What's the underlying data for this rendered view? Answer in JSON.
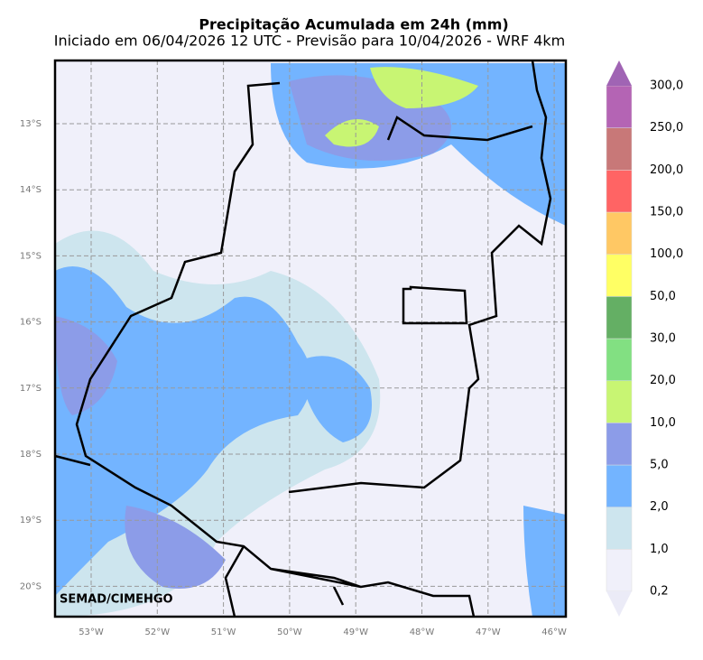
{
  "header": {
    "title": "Precipitação Acumulada em 24h (mm)",
    "subtitle": "Iniciado em 06/04/2026 12 UTC - Previsão para 10/04/2026 - WRF 4km"
  },
  "map": {
    "lat_labels": [
      "13°S",
      "14°S",
      "15°S",
      "16°S",
      "17°S",
      "18°S",
      "19°S",
      "20°S"
    ],
    "lon_labels": [
      "53°W",
      "52°W",
      "51°W",
      "50°W",
      "49°W",
      "48°W",
      "47°W",
      "46°W"
    ],
    "watermark": "SEMAD/CIMEHGO"
  },
  "colorbar": {
    "labels": [
      "0,2",
      "1,0",
      "2,0",
      "5,0",
      "10,0",
      "20,0",
      "30,0",
      "50,0",
      "100,0",
      "150,0",
      "200,0",
      "250,0",
      "300,0"
    ],
    "colors": [
      "#f0f0fa",
      "#cde5ee",
      "#73b4ff",
      "#8c9ce8",
      "#c8f573",
      "#82e082",
      "#64af64",
      "#ffff64",
      "#ffc864",
      "#ff6464",
      "#c87878",
      "#b464b4"
    ],
    "under_color": "#ebebf7",
    "over_color": "#a064b4"
  }
}
